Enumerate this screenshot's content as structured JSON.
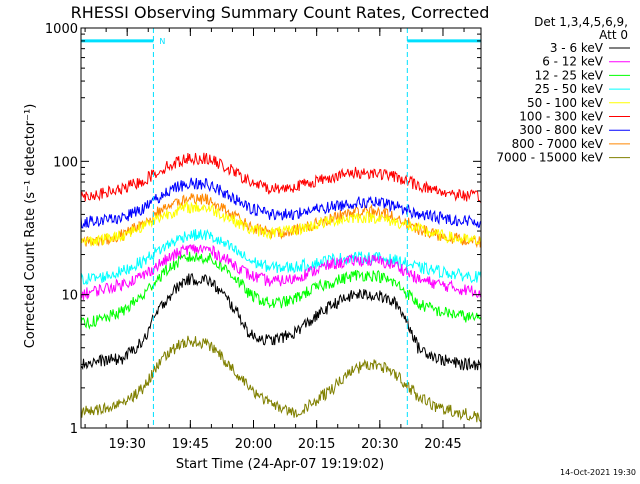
{
  "chart_data": {
    "type": "line",
    "title": "RHESSI Observing Summary Count Rates, Corrected",
    "xlabel": "Start Time (24-Apr-07 19:19:02)",
    "ylabel": "Corrected Count Rate (s⁻¹ detector⁻¹)",
    "x_unit": "minutes after 19:19:02",
    "xlim": [
      0,
      95
    ],
    "ylim": [
      1,
      1000
    ],
    "y_scale": "log",
    "grid": false,
    "legend_position": "right, outside plot",
    "legend_header": [
      "Det 1,3,4,5,6,9,",
      "Att 0"
    ],
    "footer": "14-Oct-2021 19:30",
    "x_ticks": [
      {
        "x": 10.97,
        "label": "19:30"
      },
      {
        "x": 25.97,
        "label": "19:45"
      },
      {
        "x": 40.97,
        "label": "20:00"
      },
      {
        "x": 55.97,
        "label": "20:15"
      },
      {
        "x": 70.97,
        "label": "20:30"
      },
      {
        "x": 85.97,
        "label": "20:45"
      }
    ],
    "y_ticks": [
      {
        "y": 1,
        "label": "1"
      },
      {
        "y": 10,
        "label": "10"
      },
      {
        "y": 100,
        "label": "100"
      },
      {
        "y": 1000,
        "label": "1000"
      }
    ],
    "flags": {
      "label": "N",
      "color": "#00e0ff",
      "level": 800,
      "segments": [
        [
          0,
          17.2
        ],
        [
          77.5,
          95
        ]
      ],
      "boundaries": [
        0,
        17.2,
        77.5,
        95
      ]
    },
    "series": [
      {
        "name": "3 - 6 keV",
        "color": "#000000",
        "x": [
          0,
          5,
          10,
          15,
          20,
          25,
          30,
          35,
          40,
          45,
          50,
          55,
          60,
          65,
          70,
          75,
          80,
          85,
          90,
          95
        ],
        "y": [
          3.0,
          3.2,
          3.3,
          4.5,
          9,
          13,
          13,
          9,
          5,
          4.5,
          5,
          6.5,
          8.5,
          10,
          10,
          8.5,
          4,
          3.3,
          3.0,
          3.0
        ]
      },
      {
        "name": "6 - 12 keV",
        "color": "#ff00ff",
        "x": [
          0,
          5,
          10,
          15,
          20,
          25,
          30,
          35,
          40,
          45,
          50,
          55,
          60,
          65,
          70,
          75,
          80,
          85,
          90,
          95
        ],
        "y": [
          10,
          11,
          12,
          14,
          18,
          22,
          22,
          18,
          14,
          12.5,
          13,
          15,
          17,
          18,
          18,
          16.5,
          13,
          12,
          11,
          10.5
        ]
      },
      {
        "name": "12 - 25 keV",
        "color": "#00ff00",
        "x": [
          0,
          5,
          10,
          15,
          20,
          25,
          30,
          35,
          40,
          45,
          50,
          55,
          60,
          65,
          70,
          75,
          80,
          85,
          90,
          95
        ],
        "y": [
          6,
          6.5,
          7.5,
          10,
          15,
          19,
          19,
          15,
          10,
          8.5,
          9,
          11,
          12.5,
          14,
          14,
          12,
          8.5,
          7.5,
          7,
          6.5
        ]
      },
      {
        "name": "25 - 50 keV",
        "color": "#00ffff",
        "x": [
          0,
          5,
          10,
          15,
          20,
          25,
          30,
          35,
          40,
          45,
          50,
          55,
          60,
          65,
          70,
          75,
          80,
          85,
          90,
          95
        ],
        "y": [
          13,
          13.5,
          15,
          18,
          23,
          28,
          28,
          23,
          18,
          16,
          16,
          17,
          18.5,
          19,
          19,
          18,
          16,
          15,
          14,
          13.5
        ]
      },
      {
        "name": "50 - 100 keV",
        "color": "#ffff00",
        "x": [
          0,
          5,
          10,
          15,
          20,
          25,
          30,
          35,
          40,
          45,
          50,
          55,
          60,
          65,
          70,
          75,
          80,
          85,
          90,
          95
        ],
        "y": [
          25,
          26,
          28,
          33,
          40,
          45,
          45,
          38,
          31,
          29,
          30,
          33,
          36,
          38,
          38,
          35,
          31,
          28,
          26,
          25
        ]
      },
      {
        "name": "100 - 300 keV",
        "color": "#ff0000",
        "x": [
          0,
          5,
          10,
          15,
          20,
          25,
          30,
          35,
          40,
          45,
          50,
          55,
          60,
          65,
          70,
          75,
          80,
          85,
          90,
          95
        ],
        "y": [
          55,
          57,
          62,
          72,
          90,
          105,
          105,
          88,
          70,
          62,
          64,
          70,
          77,
          82,
          82,
          76,
          66,
          60,
          56,
          54
        ]
      },
      {
        "name": "300 - 800 keV",
        "color": "#0000ff",
        "x": [
          0,
          5,
          10,
          15,
          20,
          25,
          30,
          35,
          40,
          45,
          50,
          55,
          60,
          65,
          70,
          75,
          80,
          85,
          90,
          95
        ],
        "y": [
          35,
          36,
          38,
          44,
          58,
          68,
          68,
          56,
          44,
          40,
          40,
          43,
          46,
          49,
          49,
          46,
          40,
          38,
          36,
          35
        ]
      },
      {
        "name": "800 - 7000 keV",
        "color": "#ff8800",
        "x": [
          0,
          5,
          10,
          15,
          20,
          25,
          30,
          35,
          40,
          45,
          50,
          55,
          60,
          65,
          70,
          75,
          80,
          85,
          90,
          95
        ],
        "y": [
          25,
          26,
          28,
          35,
          45,
          52,
          52,
          42,
          32,
          29,
          30,
          33,
          38,
          42,
          42,
          38,
          31,
          28,
          26,
          25
        ]
      },
      {
        "name": "7000 - 15000 keV",
        "color": "#808000",
        "x": [
          0,
          5,
          10,
          15,
          20,
          25,
          30,
          35,
          40,
          45,
          50,
          55,
          60,
          65,
          70,
          75,
          80,
          85,
          90,
          95
        ],
        "y": [
          1.3,
          1.4,
          1.5,
          2.0,
          3.5,
          4.5,
          4.3,
          3.0,
          2.0,
          1.5,
          1.3,
          1.5,
          2.0,
          2.8,
          3.0,
          2.5,
          1.7,
          1.4,
          1.3,
          1.2
        ]
      }
    ]
  }
}
